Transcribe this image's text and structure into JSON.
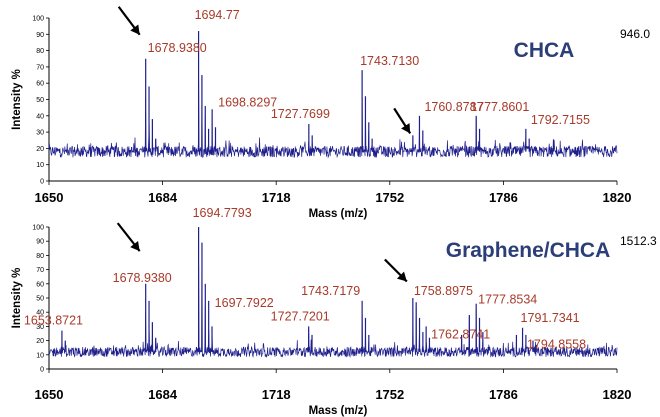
{
  "chart_data": [
    {
      "type": "line",
      "title": "CHCA",
      "max_intensity_label": "946.0",
      "xlabel": "Mass (m/z)",
      "ylabel": "Intensity %",
      "xlim": [
        1650,
        1820
      ],
      "ylim": [
        0,
        100
      ],
      "x_ticks": [
        "1650",
        "1684",
        "1718",
        "1752",
        "1786",
        "1820"
      ],
      "y_ticks": [
        "0",
        "10",
        "20",
        "30",
        "40",
        "50",
        "60",
        "70",
        "80",
        "90",
        "100"
      ],
      "baseline": 18,
      "peaks": [
        {
          "x": 1678.938,
          "y": 75
        },
        {
          "x": 1679.94,
          "y": 58
        },
        {
          "x": 1680.94,
          "y": 38
        },
        {
          "x": 1681.94,
          "y": 26
        },
        {
          "x": 1694.77,
          "y": 92
        },
        {
          "x": 1695.77,
          "y": 65
        },
        {
          "x": 1696.77,
          "y": 46
        },
        {
          "x": 1697.77,
          "y": 32
        },
        {
          "x": 1698.8297,
          "y": 44
        },
        {
          "x": 1699.83,
          "y": 33
        },
        {
          "x": 1727.7699,
          "y": 35
        },
        {
          "x": 1728.77,
          "y": 28
        },
        {
          "x": 1743.713,
          "y": 68
        },
        {
          "x": 1744.71,
          "y": 52
        },
        {
          "x": 1745.71,
          "y": 36
        },
        {
          "x": 1746.71,
          "y": 26
        },
        {
          "x": 1758.9,
          "y": 28
        },
        {
          "x": 1760.8787,
          "y": 40
        },
        {
          "x": 1761.88,
          "y": 31
        },
        {
          "x": 1777.8601,
          "y": 40
        },
        {
          "x": 1778.86,
          "y": 32
        },
        {
          "x": 1792.7155,
          "y": 32
        },
        {
          "x": 1793.72,
          "y": 26
        }
      ],
      "labels": [
        {
          "text": "1678.9380",
          "x": 1678.938,
          "y": 75
        },
        {
          "text": "1694.77",
          "x": 1694.77,
          "y": 92
        },
        {
          "text": "1698.8297",
          "x": 1698.8297,
          "y": 44
        },
        {
          "text": "1727.7699",
          "x": 1727.7699,
          "y": 35
        },
        {
          "text": "1743.7130",
          "x": 1743.713,
          "y": 68
        },
        {
          "text": "1760.8787",
          "x": 1760.8787,
          "y": 40
        },
        {
          "text": "1777.8601",
          "x": 1777.8601,
          "y": 40
        },
        {
          "text": "1792.7155",
          "x": 1792.7155,
          "y": 32
        }
      ],
      "arrow_targets": [
        {
          "x": 1678.938,
          "y": 75
        },
        {
          "x": 1757.5,
          "y": 28
        }
      ]
    },
    {
      "type": "line",
      "title": "Graphene/CHCA",
      "max_intensity_label": "1512.3",
      "xlabel": "Mass (m/z)",
      "ylabel": "Intensity %",
      "xlim": [
        1650,
        1820
      ],
      "ylim": [
        0,
        100
      ],
      "x_ticks": [
        "1650",
        "1684",
        "1718",
        "1752",
        "1786",
        "1820"
      ],
      "y_ticks": [
        "0",
        "10",
        "20",
        "30",
        "40",
        "50",
        "60",
        "70",
        "80",
        "90",
        "100"
      ],
      "baseline": 12,
      "peaks": [
        {
          "x": 1653.8721,
          "y": 27
        },
        {
          "x": 1654.87,
          "y": 20
        },
        {
          "x": 1678.938,
          "y": 60
        },
        {
          "x": 1679.94,
          "y": 48
        },
        {
          "x": 1680.94,
          "y": 33
        },
        {
          "x": 1681.94,
          "y": 22
        },
        {
          "x": 1694.7793,
          "y": 100
        },
        {
          "x": 1695.78,
          "y": 89
        },
        {
          "x": 1696.78,
          "y": 60
        },
        {
          "x": 1697.7922,
          "y": 48
        },
        {
          "x": 1698.79,
          "y": 30
        },
        {
          "x": 1727.7201,
          "y": 30
        },
        {
          "x": 1728.72,
          "y": 24
        },
        {
          "x": 1743.7179,
          "y": 48
        },
        {
          "x": 1744.72,
          "y": 36
        },
        {
          "x": 1745.72,
          "y": 24
        },
        {
          "x": 1758.8975,
          "y": 50
        },
        {
          "x": 1759.9,
          "y": 47
        },
        {
          "x": 1760.9,
          "y": 36
        },
        {
          "x": 1761.9,
          "y": 26
        },
        {
          "x": 1762.8741,
          "y": 30
        },
        {
          "x": 1763.87,
          "y": 22
        },
        {
          "x": 1773.5,
          "y": 24
        },
        {
          "x": 1775.8,
          "y": 38
        },
        {
          "x": 1777.8534,
          "y": 46
        },
        {
          "x": 1778.85,
          "y": 36
        },
        {
          "x": 1779.85,
          "y": 26
        },
        {
          "x": 1789.9,
          "y": 24
        },
        {
          "x": 1791.7341,
          "y": 29
        },
        {
          "x": 1792.73,
          "y": 24
        },
        {
          "x": 1794.8558,
          "y": 20
        },
        {
          "x": 1795.86,
          "y": 17
        }
      ],
      "labels": [
        {
          "text": "1653.8721",
          "x": 1653.8721,
          "y": 27
        },
        {
          "text": "1678.9380",
          "x": 1678.938,
          "y": 60
        },
        {
          "text": "1694.7793",
          "x": 1694.7793,
          "y": 100
        },
        {
          "text": "1697.7922",
          "x": 1697.7922,
          "y": 48
        },
        {
          "text": "1727.7201",
          "x": 1727.7201,
          "y": 30
        },
        {
          "text": "1743.7179",
          "x": 1743.7179,
          "y": 48
        },
        {
          "text": "1758.8975",
          "x": 1758.8975,
          "y": 50
        },
        {
          "text": "1762.8741",
          "x": 1762.8741,
          "y": 30
        },
        {
          "text": "1777.8534",
          "x": 1777.8534,
          "y": 46
        },
        {
          "text": "1791.7341",
          "x": 1791.7341,
          "y": 29
        },
        {
          "text": "1794.8558",
          "x": 1794.8558,
          "y": 20
        }
      ],
      "arrow_targets": [
        {
          "x": 1678.938,
          "y": 64
        },
        {
          "x": 1758.8975,
          "y": 56
        }
      ]
    }
  ],
  "colors": {
    "trace": "#1f1f8c",
    "peak_label": "#a83a2a",
    "matrix_label": "#2c3e78",
    "axis": "#000000"
  }
}
